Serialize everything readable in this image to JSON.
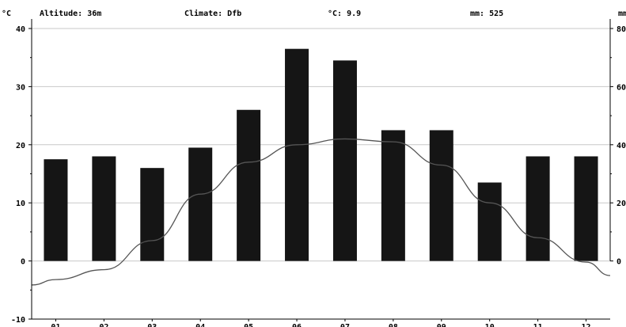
{
  "header": {
    "altitude": "Altitude: 36m",
    "climate": "Climate: Dfb",
    "mean_temp": "°C: 9.9",
    "precip": "mm: 525"
  },
  "chart_data": {
    "type": "bar",
    "categories": [
      "01",
      "02",
      "03",
      "04",
      "05",
      "06",
      "07",
      "08",
      "09",
      "10",
      "11",
      "12"
    ],
    "series": [
      {
        "axis": "right",
        "unit": "mm",
        "values": [
          35,
          36,
          32,
          39,
          52,
          73,
          69,
          45,
          45,
          27,
          36,
          36
        ]
      },
      {
        "axis": "left",
        "unit": "°C",
        "type": "line",
        "values": [
          -3.2,
          -1.5,
          3.5,
          11.5,
          17,
          20,
          21,
          20.5,
          16.5,
          10,
          4,
          -0.2
        ]
      }
    ],
    "left_axis": {
      "label": "°C",
      "ylim": [
        -10,
        40
      ],
      "ticks": [
        -10,
        0,
        10,
        20,
        30,
        40
      ]
    },
    "right_axis": {
      "label": "mm",
      "ylim": [
        0,
        80
      ],
      "ticks": [
        0,
        20,
        40,
        60,
        80
      ]
    },
    "left_tick_labels": [
      "-10",
      "0",
      "10",
      "20",
      "30",
      "40"
    ],
    "right_tick_labels": [
      "0",
      "20",
      "40",
      "60",
      "80"
    ],
    "grid": true,
    "colors": {
      "bar": "#151515",
      "line": "#555555",
      "grid": "#c8c8c8"
    }
  }
}
